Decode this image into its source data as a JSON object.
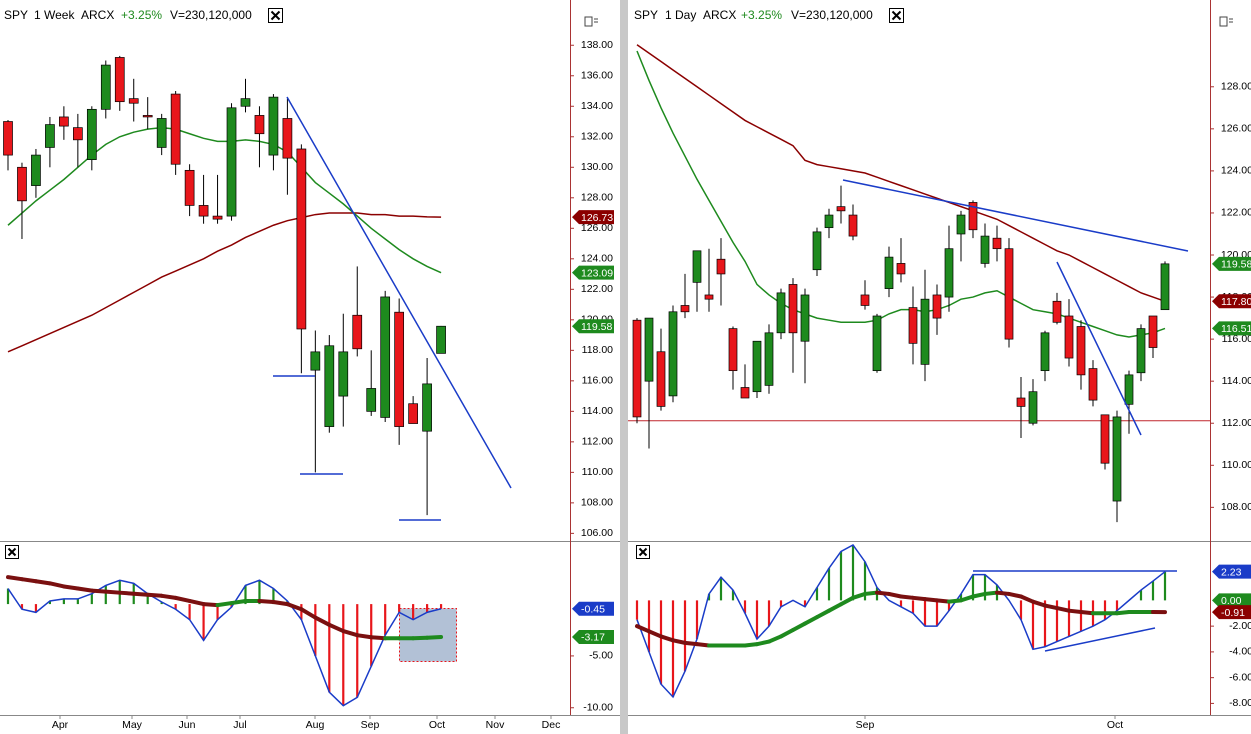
{
  "chart_data": [
    {
      "type": "candlestick",
      "header": {
        "symbol": "SPY",
        "interval": "1 Week",
        "exchange": "ARCX",
        "change": "+3.25%",
        "volume": "V=230,120,000"
      },
      "open": [
        133,
        130,
        128.8,
        131.3,
        133.3,
        132.6,
        130.5,
        133.8,
        137.2,
        134.5,
        133.4,
        131.3,
        134.8,
        129.8,
        127.5,
        126.8,
        126.8,
        134,
        133.4,
        130.8,
        133.2,
        131.2,
        116.7,
        113,
        115,
        120.3,
        114,
        113.6,
        120.5,
        114.5,
        112.7,
        117.8
      ],
      "high": [
        133.1,
        130.3,
        131.2,
        133.3,
        134,
        133.5,
        134,
        137,
        137.3,
        135.8,
        134.6,
        133.5,
        135,
        130.2,
        129.5,
        129.5,
        134.2,
        135.8,
        134,
        134.8,
        134.5,
        131.5,
        119.3,
        119,
        120.4,
        123.5,
        118,
        121.9,
        121.4,
        115,
        117.5,
        119.6
      ],
      "low": [
        129.8,
        125.3,
        128,
        130,
        131.8,
        130,
        129.8,
        133.2,
        133.7,
        133,
        132.5,
        130.8,
        129.5,
        126.8,
        126.3,
        126.3,
        126.5,
        133.6,
        130,
        129.8,
        128.2,
        116.5,
        110,
        112.6,
        113,
        117.6,
        113.7,
        113.3,
        111.8,
        113.4,
        107.2,
        117.8
      ],
      "close": [
        130.8,
        127.8,
        130.8,
        132.8,
        132.7,
        131.8,
        133.8,
        136.7,
        134.3,
        134.2,
        133.3,
        133.2,
        130.2,
        127.5,
        126.8,
        126.6,
        133.9,
        134.5,
        132.2,
        134.6,
        130.6,
        119.4,
        117.9,
        118.3,
        117.9,
        118.1,
        115.5,
        121.5,
        113,
        113.2,
        115.8,
        119.58
      ],
      "up_color": "#1e8a1e",
      "down_color": "#e8161b",
      "series": [
        {
          "color": "#8b0000",
          "values": [
            117.9,
            118.3,
            118.7,
            119.1,
            119.5,
            119.9,
            120.3,
            120.8,
            121.3,
            121.8,
            122.3,
            122.8,
            123.2,
            123.6,
            124,
            124.5,
            124.9,
            125.4,
            125.8,
            126.2,
            126.5,
            126.7,
            126.9,
            127,
            127,
            127,
            126.9,
            126.9,
            126.8,
            126.8,
            126.75,
            126.73
          ]
        },
        {
          "color": "#1e8a1e",
          "values": [
            126.2,
            127,
            127.8,
            128.5,
            129.2,
            130,
            130.8,
            131.5,
            132,
            132.3,
            132.5,
            132.6,
            132.5,
            132.2,
            131.9,
            131.7,
            131.7,
            131.8,
            131.7,
            131.5,
            131,
            130,
            129,
            128.3,
            127.6,
            126.8,
            126,
            125.3,
            124.6,
            124,
            123.5,
            123.09
          ]
        }
      ],
      "tags": [
        {
          "value": 126.73,
          "label": "126.73",
          "color": "#8b0000"
        },
        {
          "value": 123.09,
          "label": "123.09",
          "color": "#1e8a1e"
        },
        {
          "value": 119.58,
          "label": "119.58",
          "color": "#1e8a1e"
        }
      ],
      "ylim": [
        105.5,
        139
      ],
      "yticks": [
        {
          "value": 106,
          "label": "106.00"
        },
        {
          "value": 108,
          "label": "108.00"
        },
        {
          "value": 110,
          "label": "110.00"
        },
        {
          "value": 112,
          "label": "112.00"
        },
        {
          "value": 114,
          "label": "114.00"
        },
        {
          "value": 116,
          "label": "116.00"
        },
        {
          "value": 118,
          "label": "118.00"
        },
        {
          "value": 120,
          "label": "120.00"
        },
        {
          "value": 122,
          "label": "122.00"
        },
        {
          "value": 124,
          "label": "124.00"
        },
        {
          "value": 126,
          "label": "126.00"
        },
        {
          "value": 128,
          "label": "128.00"
        },
        {
          "value": 130,
          "label": "130.00"
        },
        {
          "value": 132,
          "label": "132.00"
        },
        {
          "value": 134,
          "label": "134.00"
        },
        {
          "value": 136,
          "label": "136.00"
        },
        {
          "value": 138,
          "label": "138.00"
        }
      ],
      "xticks": [
        "Apr",
        "May",
        "Jun",
        "Jul",
        "Aug",
        "Sep",
        "Oct",
        "Nov",
        "Dec"
      ]
    },
    {
      "type": "oscillator",
      "histogram": [
        1.5,
        -0.5,
        -0.8,
        0.3,
        0.5,
        0.5,
        1,
        1.8,
        2.3,
        2,
        1,
        0.2,
        -0.5,
        -1.5,
        -3.5,
        -1.5,
        -0.3,
        1.8,
        2.3,
        1.5,
        0.3,
        -1.5,
        -5,
        -8.5,
        -9.8,
        -9,
        -6,
        -3,
        -0.8,
        -1.5,
        -0.8,
        -0.45
      ],
      "signal": [
        2.6,
        2.4,
        2.2,
        2,
        1.7,
        1.5,
        1.3,
        1.2,
        1.1,
        1,
        0.9,
        0.8,
        0.6,
        0.3,
        0,
        -0.1,
        0.1,
        0.3,
        0.3,
        0.2,
        0,
        -0.5,
        -1.3,
        -2,
        -2.6,
        -3,
        -3.2,
        -3.3,
        -3.3,
        -3.3,
        -3.25,
        -3.17
      ],
      "up_color": "#1e8a1e",
      "down_color": "#e8161b",
      "line_color": "#1a3cc8",
      "signal_up": "#1e8a1e",
      "signal_down": "#7a1010",
      "tags": [
        {
          "value": -0.45,
          "label": "-0.45",
          "color": "#1a3cc8"
        },
        {
          "value": -3.17,
          "label": "-3.17",
          "color": "#1e8a1e"
        }
      ],
      "ylim": [
        -10.7,
        5.7
      ],
      "yticks": [
        {
          "value": -10,
          "label": "-10.00"
        },
        {
          "value": -5,
          "label": "-5.00"
        }
      ]
    },
    {
      "type": "candlestick",
      "header": {
        "symbol": "SPY",
        "interval": "1 Day",
        "exchange": "ARCX",
        "change": "+3.25%",
        "volume": "V=230,120,000"
      },
      "open": [
        116.9,
        114,
        115.4,
        113.3,
        117.6,
        118.7,
        118.1,
        119.8,
        116.5,
        113.7,
        113.5,
        113.8,
        116.3,
        118.6,
        115.9,
        119.3,
        121.3,
        122.3,
        121.9,
        118.1,
        114.5,
        118.4,
        119.6,
        117.5,
        114.8,
        118.1,
        118,
        121,
        122.5,
        119.6,
        120.8,
        120.3,
        113.2,
        112,
        114.5,
        117.8,
        117.1,
        116.6,
        114.6,
        112.4,
        108.3,
        112.9,
        114.4,
        117.1,
        117.4
      ],
      "high": [
        117,
        117,
        116.5,
        117.6,
        119.1,
        120.2,
        120.3,
        120.8,
        116.6,
        114.8,
        115.9,
        116.7,
        118.4,
        118.9,
        118.4,
        121.3,
        122.2,
        123.3,
        122.4,
        118.8,
        117.2,
        120.4,
        120.8,
        118.5,
        119.3,
        118.6,
        121.4,
        122.1,
        122.6,
        121.5,
        121.4,
        120.8,
        114.2,
        114.1,
        116.4,
        118.2,
        117.9,
        116.9,
        115,
        112.4,
        112.6,
        114.5,
        116.7,
        117.1,
        119.7
      ],
      "low": [
        112,
        110.8,
        112.6,
        113,
        117,
        117.3,
        117.3,
        117.6,
        113.6,
        113.2,
        113.2,
        113.4,
        116,
        114.4,
        113.9,
        119,
        120.8,
        121.5,
        120.7,
        117.4,
        114.4,
        118,
        118.7,
        114.8,
        114,
        116.2,
        117.3,
        119.7,
        120.8,
        119.4,
        119.7,
        115.6,
        111.3,
        111.9,
        114,
        116.7,
        114.7,
        113.6,
        112.8,
        109.8,
        107.3,
        111.5,
        114,
        115.1,
        117.4
      ],
      "close": [
        112.3,
        117,
        112.8,
        117.3,
        117.3,
        120.2,
        117.9,
        119.1,
        114.5,
        113.2,
        115.9,
        116.3,
        118.2,
        116.3,
        118.1,
        121.1,
        121.9,
        122.1,
        120.9,
        117.6,
        117.1,
        119.9,
        119.1,
        115.8,
        117.9,
        117,
        120.3,
        121.9,
        121.2,
        120.9,
        120.3,
        116,
        112.8,
        113.5,
        116.3,
        116.8,
        115.1,
        114.3,
        113.1,
        110.1,
        112.3,
        114.3,
        116.5,
        115.6,
        119.58
      ],
      "up_color": "#1e8a1e",
      "down_color": "#e8161b",
      "series": [
        {
          "color": "#8b0000",
          "values": [
            130,
            129.6,
            129.2,
            128.8,
            128.4,
            128,
            127.6,
            127.2,
            126.8,
            126.4,
            126.1,
            125.8,
            125.5,
            125.2,
            124.5,
            124.3,
            124.2,
            124.1,
            124,
            123.9,
            123.7,
            123.5,
            123.3,
            123.1,
            122.9,
            122.7,
            122.5,
            122.3,
            122.1,
            121.9,
            121.7,
            121.4,
            121.1,
            120.8,
            120.5,
            120.2,
            120,
            119.7,
            119.4,
            119.1,
            118.8,
            118.5,
            118.2,
            118,
            117.8
          ]
        },
        {
          "color": "#1e8a1e",
          "values": [
            129.7,
            128.3,
            127,
            125.8,
            124.7,
            123.6,
            122.6,
            121.6,
            120.6,
            119.7,
            118.6,
            118.1,
            117.7,
            117.4,
            117.2,
            117,
            116.9,
            116.8,
            116.8,
            116.8,
            116.9,
            117.2,
            117.4,
            117.4,
            117.3,
            117.4,
            117.6,
            117.9,
            118,
            118.2,
            118.3,
            118,
            117.7,
            117.4,
            117.3,
            117.2,
            117,
            116.8,
            116.6,
            116.4,
            116.2,
            116.1,
            116.2,
            116.3,
            116.51
          ]
        }
      ],
      "hline": {
        "value": 112.12,
        "color": "#c0272d"
      },
      "tags": [
        {
          "value": 119.58,
          "label": "119.58",
          "color": "#1e8a1e"
        },
        {
          "value": 117.8,
          "label": "117.80",
          "color": "#8b0000"
        },
        {
          "value": 116.51,
          "label": "116.51",
          "color": "#1e8a1e"
        }
      ],
      "ylim": [
        106.4,
        130.7
      ],
      "yticks": [
        {
          "value": 108,
          "label": "108.00"
        },
        {
          "value": 110,
          "label": "110.00"
        },
        {
          "value": 112,
          "label": "112.00"
        },
        {
          "value": 114,
          "label": "114.00"
        },
        {
          "value": 116,
          "label": "116.00"
        },
        {
          "value": 118,
          "label": "118.00"
        },
        {
          "value": 120,
          "label": "120.00"
        },
        {
          "value": 122,
          "label": "122.00"
        },
        {
          "value": 124,
          "label": "124.00"
        },
        {
          "value": 126,
          "label": "126.00"
        },
        {
          "value": 128,
          "label": "128.00"
        }
      ],
      "xticks": [
        "Sep",
        "Oct"
      ]
    },
    {
      "type": "oscillator",
      "histogram": [
        -1.5,
        -4,
        -6.5,
        -7.5,
        -5.5,
        -3,
        0.5,
        1.8,
        0.8,
        -1,
        -3,
        -2,
        -0.5,
        0,
        -0.5,
        1,
        2.5,
        3.8,
        4.3,
        3,
        1,
        0,
        -0.5,
        -1,
        -2,
        -2,
        -0.8,
        0.5,
        2,
        2,
        1.2,
        0,
        -1.5,
        -3.8,
        -3.6,
        -3.2,
        -2.8,
        -2.4,
        -2,
        -1.5,
        -0.8,
        0,
        0.8,
        1.5,
        2.23
      ],
      "signal": [
        -2,
        -2.4,
        -2.8,
        -3.1,
        -3.3,
        -3.4,
        -3.5,
        -3.5,
        -3.5,
        -3.5,
        -3.4,
        -3.2,
        -2.8,
        -2.3,
        -1.8,
        -1.3,
        -0.8,
        -0.3,
        0.2,
        0.5,
        0.6,
        0.5,
        0.3,
        0.2,
        0.1,
        0,
        -0.1,
        0,
        0.3,
        0.5,
        0.6,
        0.5,
        0.3,
        -0.1,
        -0.4,
        -0.6,
        -0.8,
        -0.9,
        -1,
        -1,
        -1,
        -0.9,
        -0.9,
        -0.9,
        -0.91
      ],
      "up_color": "#1e8a1e",
      "down_color": "#e8161b",
      "line_color": "#1a3cc8",
      "signal_up": "#1e8a1e",
      "signal_down": "#7a1010",
      "tags": [
        {
          "value": 2.23,
          "label": "2.23",
          "color": "#1a3cc8"
        },
        {
          "value": 0,
          "label": "0.00",
          "color": "#1e8a1e"
        },
        {
          "value": -0.91,
          "label": "-0.91",
          "color": "#8b0000"
        }
      ],
      "ylim": [
        -8.9,
        4.3
      ],
      "yticks": [
        {
          "value": -8,
          "label": "-8.00"
        },
        {
          "value": -6,
          "label": "-6.00"
        },
        {
          "value": -4,
          "label": "-4.00"
        },
        {
          "value": -2,
          "label": "-2.00"
        }
      ]
    }
  ]
}
